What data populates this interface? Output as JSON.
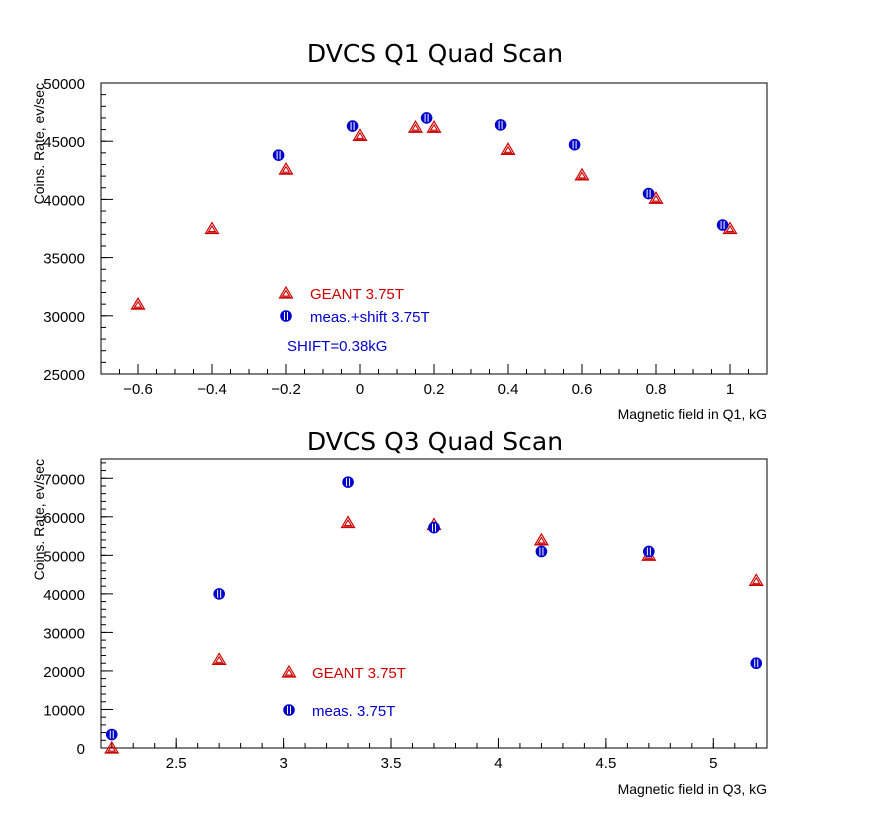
{
  "colors": {
    "geant": "#cc0000",
    "meas": "#0000cc",
    "axis": "#000000"
  },
  "chart_data": [
    {
      "type": "scatter",
      "title": "DVCS Q1 Quad Scan",
      "xlabel": "Magnetic field in Q1, kG",
      "ylabel": "Coins. Rate, ev/sec",
      "xlim": [
        -0.7,
        1.1
      ],
      "ylim": [
        25000,
        50000
      ],
      "xticks": [
        -0.6,
        -0.4,
        -0.2,
        0,
        0.2,
        0.4,
        0.6,
        0.8,
        1
      ],
      "xtick_labels": [
        "−0.6",
        "−0.4",
        "−0.2",
        "0",
        "0.2",
        "0.4",
        "0.6",
        "0.8",
        "1"
      ],
      "yticks": [
        25000,
        30000,
        35000,
        40000,
        45000,
        50000
      ],
      "ytick_labels": [
        "25000",
        "30000",
        "35000",
        "40000",
        "45000",
        "50000"
      ],
      "series": [
        {
          "name": "GEANT 3.75T",
          "marker": "triangle",
          "x": [
            -0.6,
            -0.4,
            -0.2,
            0.0,
            0.15,
            0.2,
            0.4,
            0.6,
            0.8,
            1.0
          ],
          "y": [
            31000,
            37500,
            42600,
            45500,
            46200,
            46200,
            44300,
            42100,
            40100,
            37500
          ]
        },
        {
          "name": "meas.+shift 3.75T",
          "marker": "circle",
          "x": [
            -0.22,
            -0.02,
            0.18,
            0.38,
            0.58,
            0.78,
            0.98
          ],
          "y": [
            43800,
            46300,
            47000,
            46400,
            44700,
            40500,
            37800
          ]
        }
      ],
      "annotation": "SHIFT=0.38kG"
    },
    {
      "type": "scatter",
      "title": "DVCS Q3 Quad Scan",
      "xlabel": "Magnetic field in Q3, kG",
      "ylabel": "Coins. Rate, ev/sec",
      "xlim": [
        2.15,
        5.25
      ],
      "ylim": [
        0,
        75000
      ],
      "xticks": [
        2.5,
        3,
        3.5,
        4,
        4.5,
        5
      ],
      "xtick_labels": [
        "2.5",
        "3",
        "3.5",
        "4",
        "4.5",
        "5"
      ],
      "yticks": [
        0,
        10000,
        20000,
        30000,
        40000,
        50000,
        60000,
        70000
      ],
      "ytick_labels": [
        "0",
        "10000",
        "20000",
        "30000",
        "40000",
        "50000",
        "60000",
        "70000"
      ],
      "series": [
        {
          "name": "GEANT 3.75T",
          "marker": "triangle",
          "x": [
            2.2,
            2.7,
            3.3,
            3.7,
            4.2,
            4.7,
            5.2
          ],
          "y": [
            0,
            23000,
            58500,
            58000,
            54000,
            50000,
            43500
          ]
        },
        {
          "name": "meas. 3.75T",
          "marker": "circle",
          "x": [
            2.2,
            2.7,
            3.3,
            3.7,
            4.2,
            4.7,
            5.2
          ],
          "y": [
            3500,
            40000,
            69000,
            57200,
            51000,
            51000,
            22000
          ]
        }
      ]
    }
  ]
}
